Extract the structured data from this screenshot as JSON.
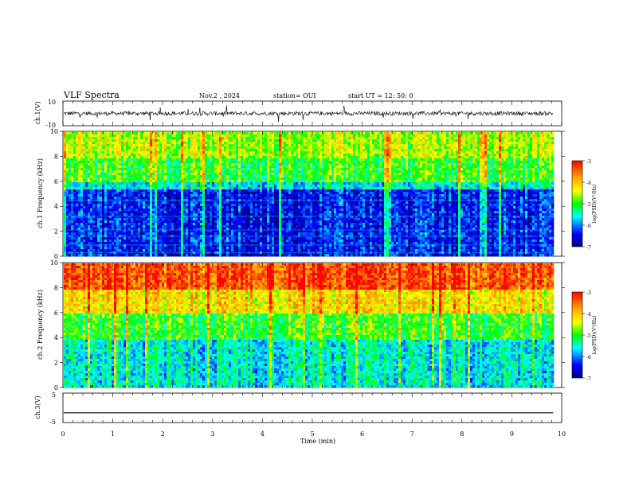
{
  "header": {
    "title": "VLF Spectra",
    "date": "Nov.2 , 2024",
    "station": "station= OUI",
    "start": "start UT = 12: 50: 0"
  },
  "colorbar": {
    "label": "log(PSD)(V²/Hz)",
    "ticks": [
      "-3",
      "-4",
      "-5",
      "-6",
      "-7"
    ],
    "colors": [
      "#ff0000",
      "#ffaa00",
      "#ffff00",
      "#00ff00",
      "#00ffff",
      "#0000ff",
      "#000080"
    ]
  },
  "chart_data": [
    {
      "type": "line",
      "name": "ch1-waveform",
      "ylabel": "ch.1(V)",
      "ylim": [
        -10,
        10
      ],
      "yticks": [
        "10",
        "-10"
      ],
      "description_series": [
        {
          "name": "",
          "values": []
        }
      ]
    },
    {
      "type": "heatmap",
      "name": "ch1-spectrogram",
      "ylabel": "ch.1 Frequency (kHz)",
      "ylim": [
        0,
        10
      ],
      "yticks": [
        "0",
        "2",
        "4",
        "6",
        "8",
        "10"
      ],
      "xlim": [
        0,
        9.83
      ],
      "bands": [
        {
          "from": 8.0,
          "to": 10.0,
          "level": -4.6
        },
        {
          "from": 6.0,
          "to": 8.0,
          "level": -5.0
        },
        {
          "from": 5.5,
          "to": 6.0,
          "level": -5.6
        },
        {
          "from": 0.0,
          "to": 5.5,
          "level": -6.4
        }
      ]
    },
    {
      "type": "heatmap",
      "name": "ch2-spectrogram",
      "ylabel": "ch.2 Frequency (kHz)",
      "ylim": [
        0,
        10
      ],
      "yticks": [
        "0",
        "2",
        "4",
        "6",
        "8",
        "10"
      ],
      "xlim": [
        0,
        9.83
      ],
      "bands": [
        {
          "from": 8.0,
          "to": 10.0,
          "level": -3.4
        },
        {
          "from": 6.0,
          "to": 8.0,
          "level": -4.2
        },
        {
          "from": 4.0,
          "to": 6.0,
          "level": -5.0
        },
        {
          "from": 0.0,
          "to": 4.0,
          "level": -5.6
        }
      ]
    },
    {
      "type": "line",
      "name": "ch3-waveform",
      "ylabel": "ch.3(V)",
      "ylim": [
        -5,
        5
      ],
      "yticks": [
        "5",
        "-5"
      ],
      "x": [
        0,
        9.83
      ],
      "y": [
        -1.7,
        -1.7
      ]
    }
  ],
  "xaxis": {
    "label": "Time (min)",
    "ticks": [
      "0",
      "1",
      "2",
      "3",
      "4",
      "5",
      "6",
      "7",
      "8",
      "9",
      "10"
    ],
    "xlim": [
      0,
      10
    ]
  }
}
